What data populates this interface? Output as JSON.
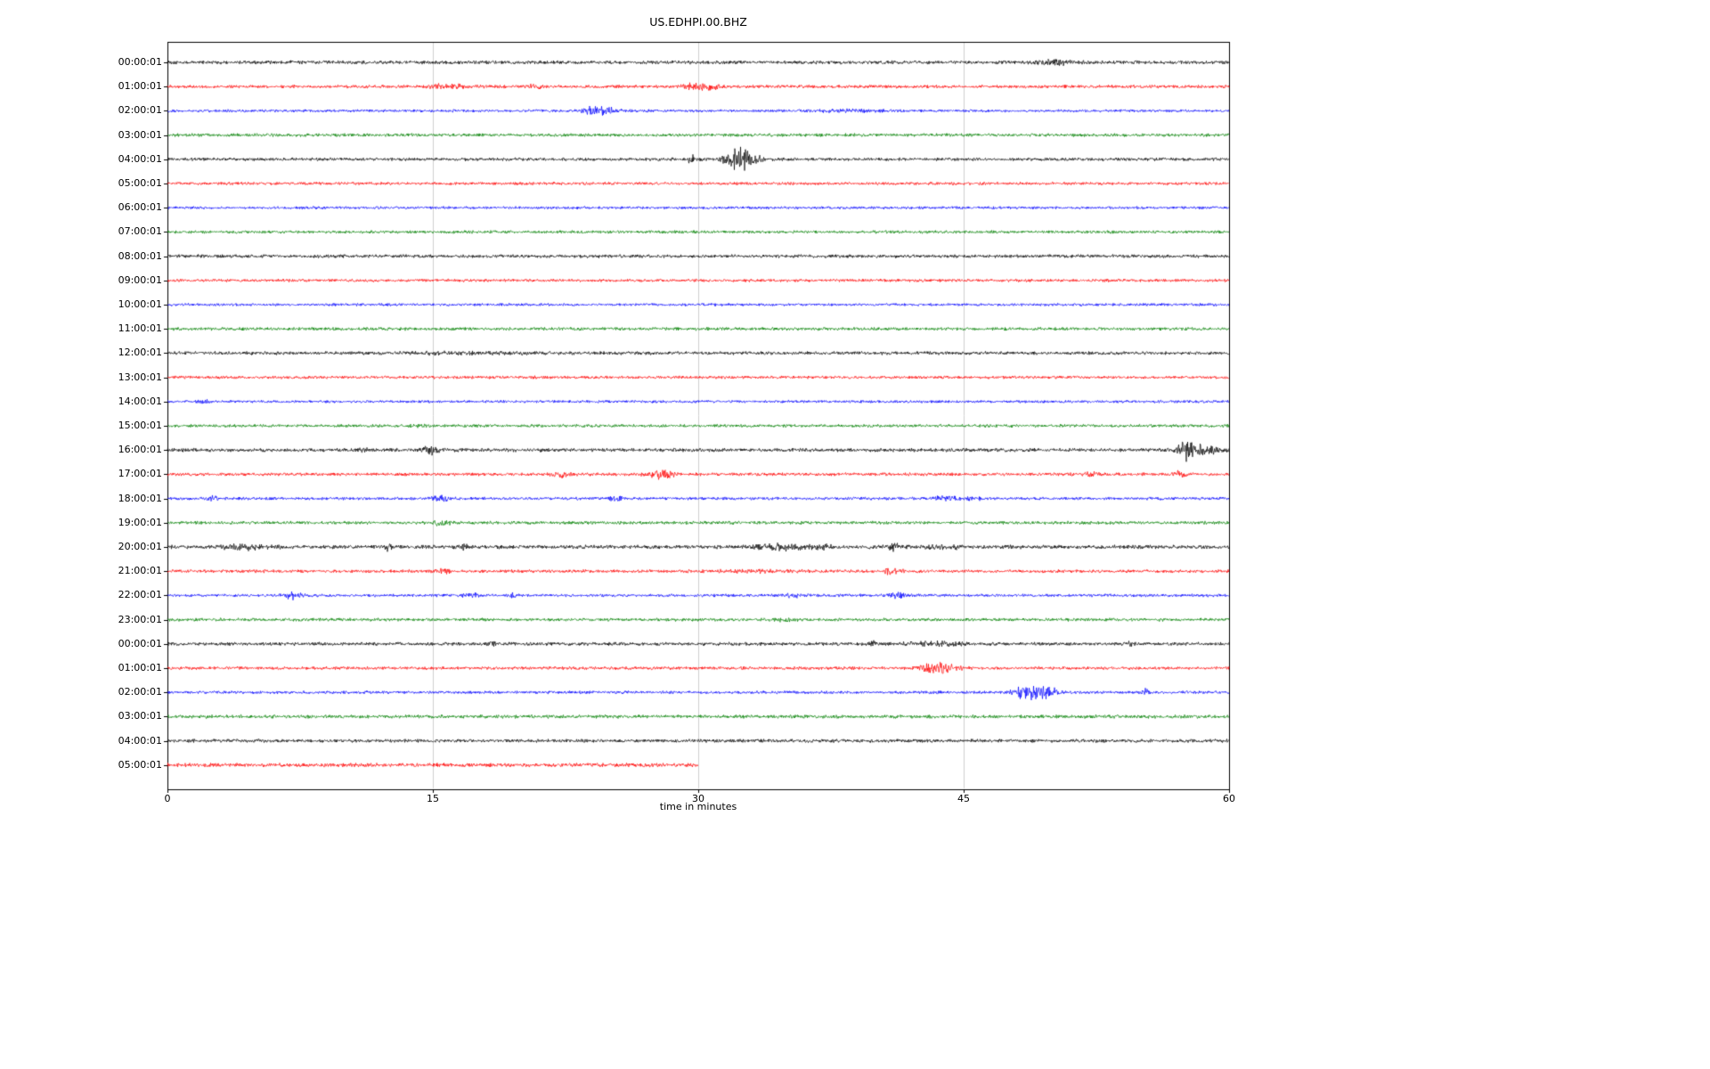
{
  "title": "US.EDHPI.00.BHZ",
  "chart_data": {
    "type": "line",
    "subtype": "helicorder-dayplot",
    "title": "US.EDHPI.00.BHZ",
    "xlabel": "time in minutes",
    "xlim": [
      0,
      60
    ],
    "xticks": [
      0,
      15,
      30,
      45,
      60
    ],
    "grid": "vertical gridlines at 15, 30, 45",
    "legend": "none",
    "colors": {
      "black": "#000000",
      "red": "#ff0000",
      "blue": "#0000ff",
      "green": "#008000"
    },
    "row_color_cycle": [
      "black",
      "red",
      "blue",
      "green"
    ],
    "events_format": "[minute, extra_amplitude_px, width_minutes]",
    "rows": [
      {
        "label": "00:00:01",
        "color": "black",
        "start": 0,
        "end": 60,
        "base": 1.7,
        "events": [
          [
            50.0,
            1.8,
            0.8
          ]
        ]
      },
      {
        "label": "01:00:01",
        "color": "red",
        "start": 0,
        "end": 60,
        "base": 1.5,
        "events": [
          [
            15.8,
            1.5,
            1.0
          ],
          [
            20.6,
            1.2,
            0.4
          ],
          [
            29.9,
            2.8,
            0.5
          ],
          [
            30.8,
            1.5,
            0.4
          ]
        ]
      },
      {
        "label": "02:00:01",
        "color": "blue",
        "start": 0,
        "end": 60,
        "base": 1.3,
        "events": [
          [
            24.0,
            3.5,
            0.4
          ],
          [
            24.9,
            2.5,
            0.5
          ],
          [
            38.5,
            0.8,
            1.5
          ]
        ]
      },
      {
        "label": "03:00:01",
        "color": "green",
        "start": 0,
        "end": 60,
        "base": 1.5,
        "events": []
      },
      {
        "label": "04:00:01",
        "color": "black",
        "start": 0,
        "end": 60,
        "base": 1.5,
        "events": [
          [
            29.6,
            4.5,
            0.12
          ],
          [
            31.9,
            6.5,
            0.35
          ],
          [
            32.5,
            9.0,
            0.3
          ],
          [
            33.1,
            4.0,
            0.4
          ]
        ]
      },
      {
        "label": "05:00:01",
        "color": "red",
        "start": 0,
        "end": 60,
        "base": 1.4,
        "events": []
      },
      {
        "label": "06:00:01",
        "color": "blue",
        "start": 0,
        "end": 60,
        "base": 1.3,
        "events": []
      },
      {
        "label": "07:00:01",
        "color": "green",
        "start": 0,
        "end": 60,
        "base": 1.4,
        "events": []
      },
      {
        "label": "08:00:01",
        "color": "black",
        "start": 0,
        "end": 60,
        "base": 1.6,
        "events": []
      },
      {
        "label": "09:00:01",
        "color": "red",
        "start": 0,
        "end": 60,
        "base": 1.4,
        "events": []
      },
      {
        "label": "10:00:01",
        "color": "blue",
        "start": 0,
        "end": 60,
        "base": 1.3,
        "events": []
      },
      {
        "label": "11:00:01",
        "color": "green",
        "start": 0,
        "end": 60,
        "base": 1.5,
        "events": []
      },
      {
        "label": "12:00:01",
        "color": "black",
        "start": 0,
        "end": 60,
        "base": 1.6,
        "events": [
          [
            17.0,
            0.6,
            3.0
          ]
        ]
      },
      {
        "label": "13:00:01",
        "color": "red",
        "start": 0,
        "end": 60,
        "base": 1.4,
        "events": []
      },
      {
        "label": "14:00:01",
        "color": "blue",
        "start": 0,
        "end": 60,
        "base": 1.3,
        "events": [
          [
            2.2,
            0.8,
            0.4
          ]
        ]
      },
      {
        "label": "15:00:01",
        "color": "green",
        "start": 0,
        "end": 60,
        "base": 1.4,
        "events": [
          [
            14.0,
            0.6,
            0.5
          ]
        ]
      },
      {
        "label": "16:00:01",
        "color": "black",
        "start": 0,
        "end": 60,
        "base": 1.7,
        "events": [
          [
            11.0,
            1.5,
            0.2
          ],
          [
            14.9,
            3.5,
            0.35
          ],
          [
            57.5,
            9.0,
            0.3
          ],
          [
            58.3,
            3.5,
            0.4
          ],
          [
            59.3,
            3.0,
            0.5
          ]
        ]
      },
      {
        "label": "17:00:01",
        "color": "red",
        "start": 0,
        "end": 60,
        "base": 1.5,
        "events": [
          [
            22.3,
            2.0,
            0.4
          ],
          [
            27.6,
            2.0,
            0.5
          ],
          [
            28.2,
            3.5,
            0.3
          ],
          [
            52.2,
            2.0,
            0.3
          ],
          [
            57.2,
            2.0,
            0.3
          ]
        ]
      },
      {
        "label": "18:00:01",
        "color": "blue",
        "start": 0,
        "end": 60,
        "base": 1.4,
        "events": [
          [
            2.5,
            2.0,
            0.3
          ],
          [
            15.4,
            2.8,
            0.35
          ],
          [
            25.4,
            2.0,
            0.3
          ],
          [
            44.0,
            2.0,
            0.4
          ],
          [
            45.5,
            1.5,
            0.3
          ]
        ]
      },
      {
        "label": "19:00:01",
        "color": "green",
        "start": 0,
        "end": 60,
        "base": 1.5,
        "events": [
          [
            15.5,
            2.0,
            0.4
          ]
        ]
      },
      {
        "label": "20:00:01",
        "color": "black",
        "start": 0,
        "end": 60,
        "base": 1.8,
        "events": [
          [
            4.3,
            2.0,
            0.9
          ],
          [
            12.5,
            4.0,
            0.12
          ],
          [
            16.8,
            1.8,
            0.25
          ],
          [
            34.6,
            2.5,
            0.9
          ],
          [
            37.0,
            1.5,
            0.5
          ],
          [
            41.0,
            2.5,
            0.4
          ],
          [
            44.0,
            1.2,
            0.6
          ]
        ]
      },
      {
        "label": "21:00:01",
        "color": "red",
        "start": 0,
        "end": 60,
        "base": 1.5,
        "events": [
          [
            15.6,
            2.0,
            0.25
          ],
          [
            33.0,
            0.8,
            2.0
          ],
          [
            41.0,
            2.8,
            0.35
          ]
        ]
      },
      {
        "label": "22:00:01",
        "color": "blue",
        "start": 0,
        "end": 60,
        "base": 1.4,
        "events": [
          [
            7.1,
            3.0,
            0.3
          ],
          [
            17.2,
            2.0,
            0.3
          ],
          [
            19.6,
            2.2,
            0.15
          ],
          [
            35.3,
            1.6,
            0.3
          ],
          [
            41.2,
            3.5,
            0.3
          ]
        ]
      },
      {
        "label": "23:00:01",
        "color": "green",
        "start": 0,
        "end": 60,
        "base": 1.5,
        "events": [
          [
            34.9,
            1.2,
            0.4
          ]
        ]
      },
      {
        "label": "00:00:01",
        "color": "black",
        "start": 0,
        "end": 60,
        "base": 1.6,
        "events": [
          [
            18.4,
            3.0,
            0.1
          ],
          [
            39.9,
            2.8,
            0.12
          ],
          [
            43.5,
            1.5,
            1.2
          ],
          [
            54.3,
            1.5,
            0.3
          ]
        ]
      },
      {
        "label": "01:00:01",
        "color": "red",
        "start": 0,
        "end": 60,
        "base": 1.5,
        "events": [
          [
            43.3,
            4.5,
            0.5
          ],
          [
            44.3,
            3.0,
            0.4
          ]
        ]
      },
      {
        "label": "02:00:01",
        "color": "blue",
        "start": 0,
        "end": 60,
        "base": 1.4,
        "events": [
          [
            48.4,
            4.5,
            0.5
          ],
          [
            49.3,
            4.0,
            0.5
          ],
          [
            50.0,
            2.5,
            0.4
          ],
          [
            55.3,
            3.5,
            0.12
          ]
        ]
      },
      {
        "label": "03:00:01",
        "color": "green",
        "start": 0,
        "end": 60,
        "base": 1.7,
        "events": []
      },
      {
        "label": "04:00:01",
        "color": "black",
        "start": 0,
        "end": 60,
        "base": 1.6,
        "events": []
      },
      {
        "label": "05:00:01",
        "color": "red",
        "start": 0,
        "end": 30,
        "base": 1.8,
        "events": []
      }
    ]
  }
}
